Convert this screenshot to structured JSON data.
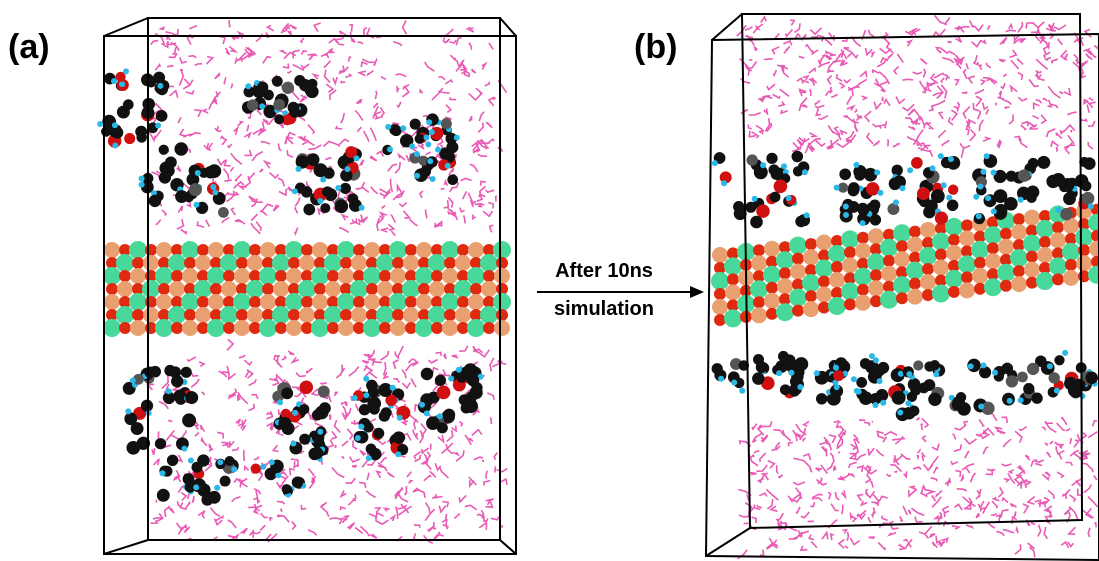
{
  "panels": [
    {
      "label": "(a)"
    },
    {
      "label": "(b)"
    }
  ],
  "arrow": {
    "lines": [
      "After 10ns",
      "simulation"
    ]
  }
}
